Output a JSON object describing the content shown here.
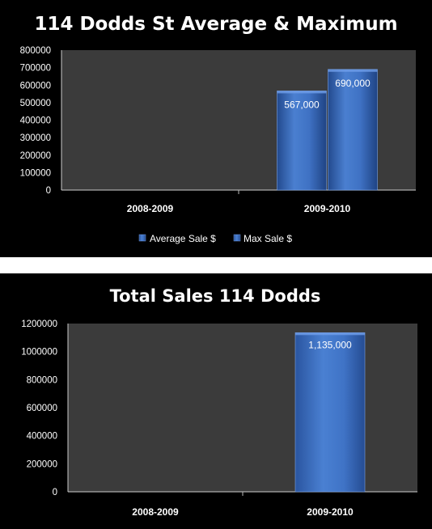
{
  "chart_data": [
    {
      "type": "bar",
      "title": "114 Dodds St Average & Maximum",
      "categories": [
        "2008-2009",
        "2009-2010"
      ],
      "series": [
        {
          "name": "Average Sale $",
          "values": [
            null,
            567000
          ],
          "data_labels": [
            "",
            "567,000"
          ]
        },
        {
          "name": "Max Sale $",
          "values": [
            null,
            690000
          ],
          "data_labels": [
            "",
            "690,000"
          ]
        }
      ],
      "ylim": [
        0,
        800000
      ],
      "yticks": [
        "0",
        "100000",
        "200000",
        "300000",
        "400000",
        "500000",
        "600000",
        "700000",
        "800000"
      ],
      "legend": "bottom",
      "grid": false,
      "colors": {
        "bar": "#3d6fc0",
        "plot_bg": "#3b3b3b",
        "page_bg": "#000000"
      }
    },
    {
      "type": "bar",
      "title": "Total Sales 114 Dodds",
      "categories": [
        "2008-2009",
        "2009-2010"
      ],
      "series": [
        {
          "values": [
            null,
            1135000
          ],
          "data_labels": [
            "",
            "1,135,000"
          ]
        }
      ],
      "ylim": [
        0,
        1200000
      ],
      "yticks": [
        "0",
        "200000",
        "400000",
        "600000",
        "800000",
        "1000000",
        "1200000"
      ],
      "legend": "none",
      "grid": false,
      "colors": {
        "bar": "#3d6fc0",
        "plot_bg": "#3b3b3b",
        "page_bg": "#000000"
      }
    }
  ]
}
